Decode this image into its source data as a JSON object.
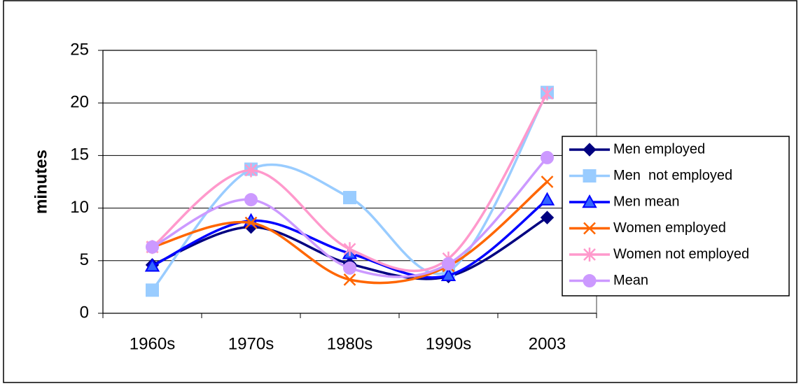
{
  "chart_data": {
    "type": "line",
    "smooth": true,
    "y_label": "minutes",
    "categories": [
      "1960s",
      "1970s",
      "1980s",
      "1990s",
      "2003"
    ],
    "series": [
      {
        "name": "Men employed",
        "color": "#000080",
        "marker": "diamond",
        "values": [
          4.6,
          8.2,
          4.7,
          3.5,
          9.1
        ]
      },
      {
        "name": "Men  not employed",
        "color": "#99CCFF",
        "marker": "square",
        "values": [
          2.2,
          13.7,
          11.0,
          4.0,
          21.0
        ]
      },
      {
        "name": "Men mean",
        "color": "#0000FF",
        "marker": "triangle",
        "values": [
          4.5,
          8.8,
          5.7,
          3.6,
          10.8
        ]
      },
      {
        "name": "Women employed",
        "color": "#FF6600",
        "marker": "x",
        "values": [
          6.3,
          8.6,
          3.2,
          4.5,
          12.5
        ]
      },
      {
        "name": "Women not employed",
        "color": "#FF99CC",
        "marker": "star",
        "values": [
          6.3,
          13.6,
          6.1,
          5.2,
          20.9
        ]
      },
      {
        "name": "Mean",
        "color": "#CC99FF",
        "marker": "circle",
        "values": [
          6.3,
          10.8,
          4.3,
          4.7,
          14.8
        ]
      }
    ],
    "ylim": [
      0,
      25
    ],
    "yticks": [
      0,
      5,
      10,
      15,
      20,
      25
    ],
    "grid": true,
    "legend": "right"
  }
}
